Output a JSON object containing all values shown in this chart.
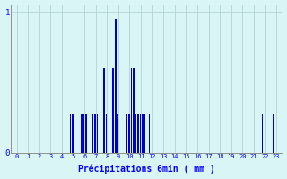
{
  "title": "",
  "xlabel": "Précipitations 6min ( mm )",
  "background_color": "#d9f5f5",
  "bar_color": "#0000cc",
  "grid_color": "#b8d8d8",
  "ylim": [
    0,
    1.05
  ],
  "yticks": [
    0,
    1
  ],
  "xlim": [
    -0.5,
    23.5
  ],
  "xticks": [
    0,
    1,
    2,
    3,
    4,
    5,
    6,
    7,
    8,
    9,
    10,
    11,
    12,
    13,
    14,
    15,
    16,
    17,
    18,
    19,
    20,
    21,
    22,
    23
  ],
  "bar_width": 0.12,
  "bars": [
    [
      4.75,
      0.28
    ],
    [
      4.95,
      0.28
    ],
    [
      5.75,
      0.28
    ],
    [
      5.95,
      0.28
    ],
    [
      6.15,
      0.28
    ],
    [
      6.75,
      0.28
    ],
    [
      6.95,
      0.28
    ],
    [
      7.15,
      0.28
    ],
    [
      7.75,
      0.6
    ],
    [
      7.95,
      0.28
    ],
    [
      8.55,
      0.6
    ],
    [
      8.75,
      0.95
    ],
    [
      8.95,
      0.28
    ],
    [
      9.75,
      0.28
    ],
    [
      9.95,
      0.28
    ],
    [
      10.15,
      0.6
    ],
    [
      10.35,
      0.6
    ],
    [
      10.55,
      0.28
    ],
    [
      10.75,
      0.28
    ],
    [
      10.95,
      0.28
    ],
    [
      11.15,
      0.28
    ],
    [
      11.35,
      0.28
    ],
    [
      11.75,
      0.28
    ],
    [
      21.75,
      0.28
    ],
    [
      22.75,
      0.28
    ]
  ]
}
